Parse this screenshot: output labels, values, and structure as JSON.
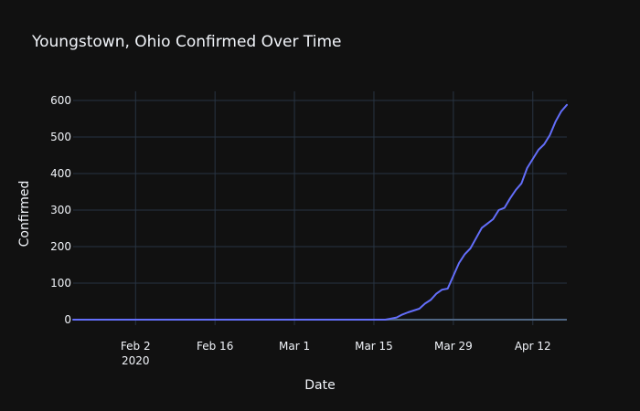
{
  "chart_data": {
    "type": "line",
    "title": "Youngstown, Ohio Confirmed Over Time",
    "xlabel": "Date",
    "ylabel": "Confirmed",
    "xlim": [
      "2020-01-22",
      "2020-04-18"
    ],
    "ylim": [
      -15,
      625
    ],
    "grid": true,
    "legend": "none",
    "x_ticks": [
      {
        "date": "2020-02-02",
        "label": "Feb 2",
        "sublabel": "2020"
      },
      {
        "date": "2020-02-16",
        "label": "Feb 16",
        "sublabel": ""
      },
      {
        "date": "2020-03-01",
        "label": "Mar 1",
        "sublabel": ""
      },
      {
        "date": "2020-03-15",
        "label": "Mar 15",
        "sublabel": ""
      },
      {
        "date": "2020-03-29",
        "label": "Mar 29",
        "sublabel": ""
      },
      {
        "date": "2020-04-12",
        "label": "Apr 12",
        "sublabel": ""
      }
    ],
    "y_ticks": [
      {
        "value": 0,
        "label": "0"
      },
      {
        "value": 100,
        "label": "100"
      },
      {
        "value": 200,
        "label": "200"
      },
      {
        "value": 300,
        "label": "300"
      },
      {
        "value": 400,
        "label": "400"
      },
      {
        "value": 500,
        "label": "500"
      },
      {
        "value": 600,
        "label": "600"
      }
    ],
    "series": [
      {
        "color": "#636efa",
        "x": [
          "2020-01-22",
          "2020-03-17",
          "2020-03-18",
          "2020-03-19",
          "2020-03-20",
          "2020-03-21",
          "2020-03-22",
          "2020-03-23",
          "2020-03-24",
          "2020-03-25",
          "2020-03-26",
          "2020-03-27",
          "2020-03-28",
          "2020-03-29",
          "2020-03-30",
          "2020-03-31",
          "2020-04-01",
          "2020-04-02",
          "2020-04-03",
          "2020-04-04",
          "2020-04-05",
          "2020-04-06",
          "2020-04-07",
          "2020-04-08",
          "2020-04-09",
          "2020-04-10",
          "2020-04-11",
          "2020-04-12",
          "2020-04-13",
          "2020-04-14",
          "2020-04-15",
          "2020-04-16",
          "2020-04-17",
          "2020-04-18"
        ],
        "y": [
          0,
          0,
          3,
          6,
          14,
          20,
          25,
          30,
          44,
          54,
          71,
          82,
          85,
          120,
          155,
          179,
          195,
          223,
          251,
          263,
          275,
          300,
          306,
          332,
          355,
          373,
          415,
          440,
          465,
          480,
          505,
          542,
          570,
          588
        ]
      }
    ]
  }
}
